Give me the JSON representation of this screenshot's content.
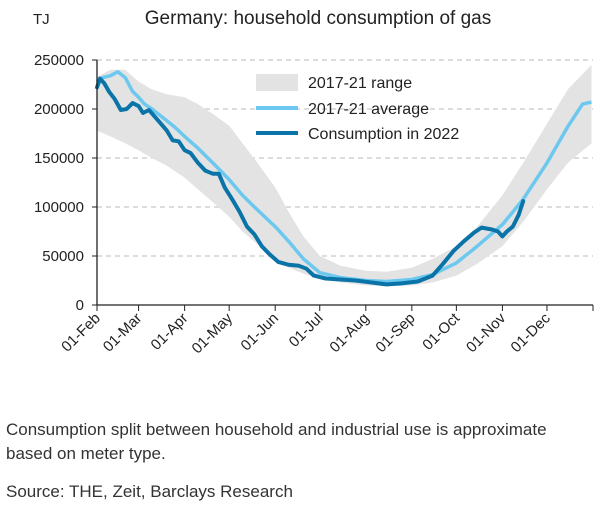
{
  "chart_data": {
    "type": "line",
    "title": "Germany: household consumption of gas",
    "unit_label": "TJ",
    "ylim": [
      0,
      250000
    ],
    "yticks": [
      0,
      50000,
      100000,
      150000,
      200000,
      250000
    ],
    "ytick_labels": [
      "0",
      "50000",
      "100000",
      "150000",
      "200000",
      "250000"
    ],
    "x_domain": [
      "2022-02-01",
      "2023-01-01"
    ],
    "xticks": [
      "2022-02-01",
      "2022-03-01",
      "2022-04-01",
      "2022-05-01",
      "2022-06-01",
      "2022-07-01",
      "2022-08-01",
      "2022-09-01",
      "2022-10-01",
      "2022-11-01",
      "2022-12-01"
    ],
    "xtick_labels": [
      "01-Feb",
      "01-Mar",
      "01-Apr",
      "01-May",
      "01-Jun",
      "01-Jul",
      "01-Aug",
      "01-Sep",
      "01-Oct",
      "01-Nov",
      "01-Dec"
    ],
    "grid": "horizontal dashed",
    "legend_position": "top-center",
    "colors": {
      "range": "#e3e3e3",
      "average": "#6cc8ee",
      "consumption": "#0a74a8",
      "axis": "#222222",
      "grid": "#c8c8c8"
    },
    "series": [
      {
        "name": "2017-21 range",
        "kind": "band",
        "points": [
          {
            "x": "2022-02-01",
            "low": 178000,
            "high": 233000
          },
          {
            "x": "2022-02-10",
            "low": 172000,
            "high": 240000
          },
          {
            "x": "2022-02-20",
            "low": 165000,
            "high": 240000
          },
          {
            "x": "2022-03-01",
            "low": 158000,
            "high": 228000
          },
          {
            "x": "2022-03-10",
            "low": 150000,
            "high": 220000
          },
          {
            "x": "2022-03-20",
            "low": 142000,
            "high": 215000
          },
          {
            "x": "2022-04-01",
            "low": 130000,
            "high": 212000
          },
          {
            "x": "2022-04-10",
            "low": 118000,
            "high": 205000
          },
          {
            "x": "2022-04-20",
            "low": 105000,
            "high": 195000
          },
          {
            "x": "2022-05-01",
            "low": 90000,
            "high": 183000
          },
          {
            "x": "2022-05-10",
            "low": 75000,
            "high": 165000
          },
          {
            "x": "2022-05-20",
            "low": 62000,
            "high": 145000
          },
          {
            "x": "2022-06-01",
            "low": 48000,
            "high": 120000
          },
          {
            "x": "2022-06-10",
            "low": 38000,
            "high": 95000
          },
          {
            "x": "2022-06-20",
            "low": 32000,
            "high": 70000
          },
          {
            "x": "2022-07-01",
            "low": 27000,
            "high": 50000
          },
          {
            "x": "2022-07-15",
            "low": 23000,
            "high": 40000
          },
          {
            "x": "2022-08-01",
            "low": 20000,
            "high": 35000
          },
          {
            "x": "2022-08-15",
            "low": 19000,
            "high": 34000
          },
          {
            "x": "2022-09-01",
            "low": 20000,
            "high": 38000
          },
          {
            "x": "2022-09-15",
            "low": 23000,
            "high": 47000
          },
          {
            "x": "2022-10-01",
            "low": 30000,
            "high": 60000
          },
          {
            "x": "2022-10-15",
            "low": 42000,
            "high": 80000
          },
          {
            "x": "2022-11-01",
            "low": 60000,
            "high": 112000
          },
          {
            "x": "2022-11-15",
            "low": 85000,
            "high": 145000
          },
          {
            "x": "2022-12-01",
            "low": 118000,
            "high": 185000
          },
          {
            "x": "2022-12-15",
            "low": 145000,
            "high": 220000
          },
          {
            "x": "2022-12-31",
            "low": 165000,
            "high": 245000
          }
        ]
      },
      {
        "name": "2017-21 average",
        "kind": "line",
        "points": [
          {
            "x": "2022-02-01",
            "y": 228000
          },
          {
            "x": "2022-02-05",
            "y": 232000
          },
          {
            "x": "2022-02-10",
            "y": 234000
          },
          {
            "x": "2022-02-15",
            "y": 238000
          },
          {
            "x": "2022-02-20",
            "y": 232000
          },
          {
            "x": "2022-02-25",
            "y": 218000
          },
          {
            "x": "2022-03-01",
            "y": 212000
          },
          {
            "x": "2022-03-05",
            "y": 205000
          },
          {
            "x": "2022-03-10",
            "y": 200000
          },
          {
            "x": "2022-03-15",
            "y": 194000
          },
          {
            "x": "2022-03-20",
            "y": 188000
          },
          {
            "x": "2022-03-25",
            "y": 182000
          },
          {
            "x": "2022-04-01",
            "y": 172000
          },
          {
            "x": "2022-04-10",
            "y": 160000
          },
          {
            "x": "2022-04-20",
            "y": 145000
          },
          {
            "x": "2022-05-01",
            "y": 128000
          },
          {
            "x": "2022-05-10",
            "y": 112000
          },
          {
            "x": "2022-05-20",
            "y": 97000
          },
          {
            "x": "2022-06-01",
            "y": 80000
          },
          {
            "x": "2022-06-10",
            "y": 65000
          },
          {
            "x": "2022-06-20",
            "y": 47000
          },
          {
            "x": "2022-07-01",
            "y": 33000
          },
          {
            "x": "2022-07-15",
            "y": 28000
          },
          {
            "x": "2022-08-01",
            "y": 25000
          },
          {
            "x": "2022-08-15",
            "y": 24000
          },
          {
            "x": "2022-09-01",
            "y": 26000
          },
          {
            "x": "2022-09-15",
            "y": 31000
          },
          {
            "x": "2022-10-01",
            "y": 43000
          },
          {
            "x": "2022-10-15",
            "y": 60000
          },
          {
            "x": "2022-11-01",
            "y": 82000
          },
          {
            "x": "2022-11-15",
            "y": 108000
          },
          {
            "x": "2022-12-01",
            "y": 145000
          },
          {
            "x": "2022-12-15",
            "y": 182000
          },
          {
            "x": "2022-12-25",
            "y": 205000
          },
          {
            "x": "2022-12-31",
            "y": 207000
          }
        ]
      },
      {
        "name": "Consumption in 2022",
        "kind": "line",
        "points": [
          {
            "x": "2022-02-01",
            "y": 222000
          },
          {
            "x": "2022-02-03",
            "y": 231000
          },
          {
            "x": "2022-02-06",
            "y": 226000
          },
          {
            "x": "2022-02-09",
            "y": 218000
          },
          {
            "x": "2022-02-13",
            "y": 210000
          },
          {
            "x": "2022-02-17",
            "y": 199000
          },
          {
            "x": "2022-02-21",
            "y": 200000
          },
          {
            "x": "2022-02-25",
            "y": 206000
          },
          {
            "x": "2022-03-01",
            "y": 203000
          },
          {
            "x": "2022-03-04",
            "y": 196000
          },
          {
            "x": "2022-03-08",
            "y": 199000
          },
          {
            "x": "2022-03-12",
            "y": 192000
          },
          {
            "x": "2022-03-16",
            "y": 185000
          },
          {
            "x": "2022-03-20",
            "y": 178000
          },
          {
            "x": "2022-03-24",
            "y": 168000
          },
          {
            "x": "2022-03-28",
            "y": 167000
          },
          {
            "x": "2022-04-01",
            "y": 158000
          },
          {
            "x": "2022-04-05",
            "y": 155000
          },
          {
            "x": "2022-04-10",
            "y": 145000
          },
          {
            "x": "2022-04-15",
            "y": 137000
          },
          {
            "x": "2022-04-20",
            "y": 134000
          },
          {
            "x": "2022-04-24",
            "y": 134000
          },
          {
            "x": "2022-04-28",
            "y": 120000
          },
          {
            "x": "2022-05-03",
            "y": 108000
          },
          {
            "x": "2022-05-08",
            "y": 95000
          },
          {
            "x": "2022-05-13",
            "y": 80000
          },
          {
            "x": "2022-05-18",
            "y": 72000
          },
          {
            "x": "2022-05-23",
            "y": 60000
          },
          {
            "x": "2022-05-28",
            "y": 52000
          },
          {
            "x": "2022-06-03",
            "y": 44000
          },
          {
            "x": "2022-06-10",
            "y": 41000
          },
          {
            "x": "2022-06-17",
            "y": 40000
          },
          {
            "x": "2022-06-22",
            "y": 37000
          },
          {
            "x": "2022-06-27",
            "y": 30000
          },
          {
            "x": "2022-07-05",
            "y": 27000
          },
          {
            "x": "2022-07-15",
            "y": 26000
          },
          {
            "x": "2022-07-25",
            "y": 25000
          },
          {
            "x": "2022-08-05",
            "y": 23000
          },
          {
            "x": "2022-08-15",
            "y": 21000
          },
          {
            "x": "2022-08-25",
            "y": 22000
          },
          {
            "x": "2022-09-05",
            "y": 24000
          },
          {
            "x": "2022-09-15",
            "y": 30000
          },
          {
            "x": "2022-09-22",
            "y": 42000
          },
          {
            "x": "2022-09-29",
            "y": 55000
          },
          {
            "x": "2022-10-06",
            "y": 65000
          },
          {
            "x": "2022-10-13",
            "y": 74000
          },
          {
            "x": "2022-10-18",
            "y": 79000
          },
          {
            "x": "2022-10-25",
            "y": 77000
          },
          {
            "x": "2022-10-29",
            "y": 75000
          },
          {
            "x": "2022-11-01",
            "y": 70000
          },
          {
            "x": "2022-11-04",
            "y": 75000
          },
          {
            "x": "2022-11-08",
            "y": 80000
          },
          {
            "x": "2022-11-12",
            "y": 92000
          },
          {
            "x": "2022-11-15",
            "y": 106000
          }
        ]
      }
    ]
  },
  "footnote": "Consumption split between household and industrial use is approximate based on meter type.",
  "source": "Source: THE, Zeit, Barclays Research"
}
